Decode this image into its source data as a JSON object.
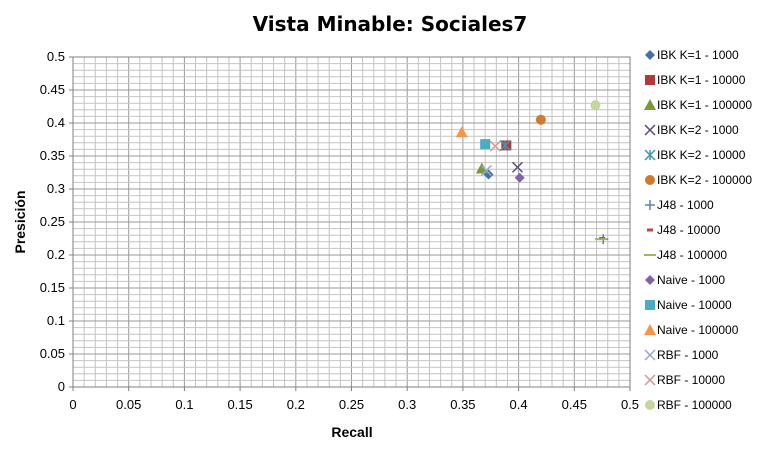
{
  "chart_data": {
    "type": "scatter",
    "title": "Vista Minable: Sociales7",
    "xlabel": "Recall",
    "ylabel": "Presición",
    "xlim": [
      0,
      0.5
    ],
    "ylim": [
      0,
      0.5
    ],
    "x_major_step": 0.05,
    "y_major_step": 0.05,
    "x_ticks": [
      "0",
      "0.05",
      "0.1",
      "0.15",
      "0.2",
      "0.25",
      "0.3",
      "0.35",
      "0.4",
      "0.45",
      "0.5"
    ],
    "y_ticks": [
      "0",
      "0.05",
      "0.1",
      "0.15",
      "0.2",
      "0.25",
      "0.3",
      "0.35",
      "0.4",
      "0.45",
      "0.5"
    ],
    "grid": true,
    "legend_position": "right",
    "series": [
      {
        "name": "IBK K=1 - 1000",
        "marker": "diamond",
        "color": "#4472a8",
        "points": [
          [
            0.373,
            0.322
          ]
        ]
      },
      {
        "name": "IBK K=1 - 10000",
        "marker": "square",
        "color": "#b23a3a",
        "points": [
          [
            0.389,
            0.366
          ]
        ]
      },
      {
        "name": "IBK K=1 - 100000",
        "marker": "triangle",
        "color": "#7a9a3a",
        "points": [
          [
            0.367,
            0.331
          ]
        ]
      },
      {
        "name": "IBK K=2 - 1000",
        "marker": "x",
        "color": "#5c4a80",
        "points": [
          [
            0.399,
            0.333
          ]
        ]
      },
      {
        "name": "IBK K=2 - 10000",
        "marker": "asterisk",
        "color": "#3a9ab0",
        "points": [
          [
            0.388,
            0.366
          ]
        ]
      },
      {
        "name": "IBK K=2 - 100000",
        "marker": "circle",
        "color": "#d07a30",
        "points": [
          [
            0.42,
            0.405
          ]
        ]
      },
      {
        "name": "J48 - 1000",
        "marker": "plus",
        "color": "#5a80bb",
        "points": [
          [
            0.476,
            0.224
          ]
        ]
      },
      {
        "name": "J48 - 10000",
        "marker": "dash",
        "color": "#c04646",
        "points": [
          [
            0.475,
            0.225
          ]
        ]
      },
      {
        "name": "J48 - 100000",
        "marker": "line",
        "color": "#9bbb59",
        "points": [
          [
            0.474,
            0.224
          ]
        ]
      },
      {
        "name": "Naive - 1000",
        "marker": "diamond",
        "color": "#8064a2",
        "points": [
          [
            0.401,
            0.317
          ]
        ]
      },
      {
        "name": "Naive - 10000",
        "marker": "square",
        "color": "#4bacc6",
        "points": [
          [
            0.37,
            0.368
          ]
        ]
      },
      {
        "name": "Naive - 100000",
        "marker": "triangle",
        "color": "#f79646",
        "points": [
          [
            0.349,
            0.386
          ]
        ]
      },
      {
        "name": "RBF - 1000",
        "marker": "x",
        "color": "#95a6d2",
        "points": [
          [
            0.371,
            0.328
          ]
        ]
      },
      {
        "name": "RBF - 10000",
        "marker": "x",
        "color": "#d99694",
        "points": [
          [
            0.379,
            0.365
          ]
        ]
      },
      {
        "name": "RBF - 100000",
        "marker": "circle",
        "color": "#c3d69b",
        "points": [
          [
            0.469,
            0.427
          ]
        ]
      }
    ]
  }
}
